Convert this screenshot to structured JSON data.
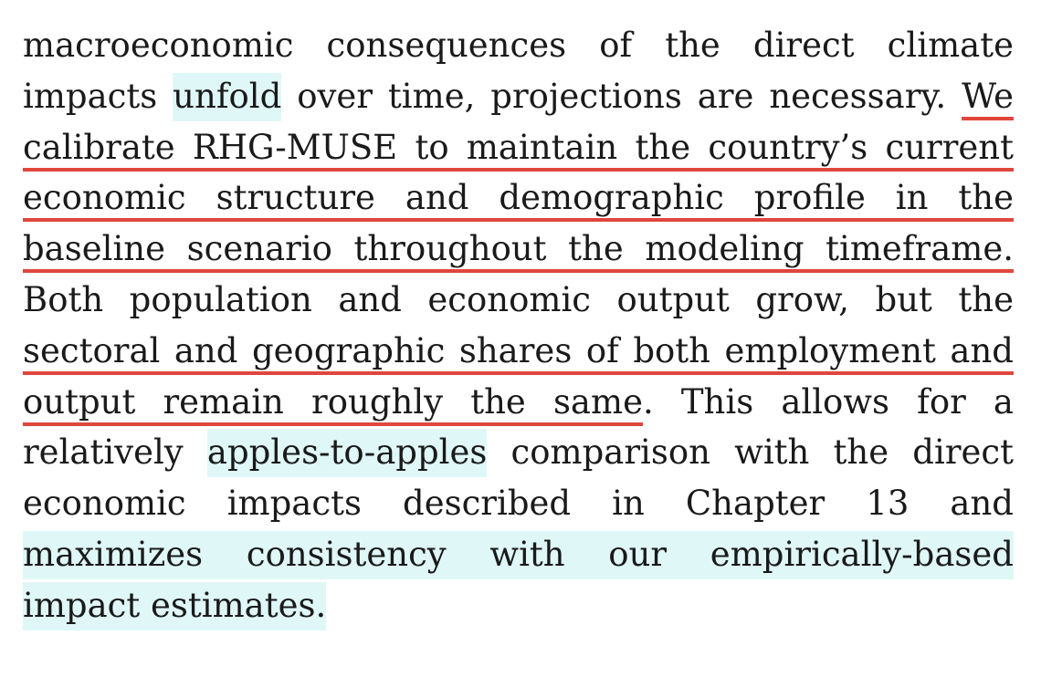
{
  "document": {
    "lines": [
      [
        {
          "text": "macroeconomic consequences of the direct climate",
          "style": "plain"
        }
      ],
      [
        {
          "text": "impacts ",
          "style": "plain"
        },
        {
          "text": "unfold",
          "style": "highlight"
        },
        {
          "text": " over time, projections are necessary. ",
          "style": "plain"
        },
        {
          "text": "We",
          "style": "underline"
        }
      ],
      [
        {
          "text": "calibrate RHG-MUSE to maintain the country’s current",
          "style": "underline"
        }
      ],
      [
        {
          "text": "economic structure and demographic profile in the",
          "style": "underline"
        }
      ],
      [
        {
          "text": "baseline scenario throughout the modeling timeframe.",
          "style": "underline"
        }
      ],
      [
        {
          "text": "Both population and economic output grow, but the",
          "style": "plain"
        }
      ],
      [
        {
          "text": "sectoral and geographic shares of both employment and",
          "style": "underline"
        }
      ],
      [
        {
          "text": "output remain roughly the same",
          "style": "underline"
        },
        {
          "text": ". This allows for a",
          "style": "plain"
        }
      ],
      [
        {
          "text": "relatively ",
          "style": "plain"
        },
        {
          "text": "apples-to-apples",
          "style": "highlight"
        },
        {
          "text": " comparison with the direct",
          "style": "plain"
        }
      ],
      [
        {
          "text": "economic impacts described in Chapter 13 and",
          "style": "plain"
        }
      ],
      [
        {
          "text": "maximizes consistency with our empirically-based",
          "style": "highlight"
        }
      ],
      [
        {
          "text": "impact estimates.",
          "style": "highlight"
        }
      ]
    ],
    "colors": {
      "text": "#1a1a1a",
      "highlight": "#dff7f7",
      "underline": "#e0463c"
    }
  }
}
